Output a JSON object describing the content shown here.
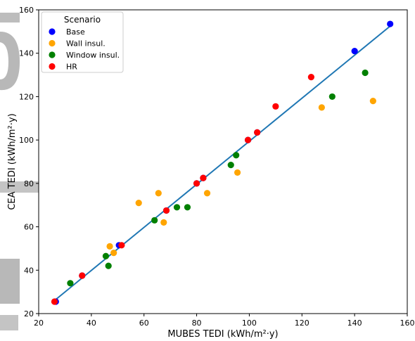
{
  "chart_data": {
    "type": "scatter",
    "xlabel": "MUBES TEDI (kWh/m²·y)",
    "ylabel": "CEA TEDI (kWh/m²·y)",
    "xlim": [
      20,
      160
    ],
    "ylim": [
      20,
      160
    ],
    "xticks": [
      20,
      40,
      60,
      80,
      100,
      120,
      140,
      160
    ],
    "yticks": [
      20,
      40,
      60,
      80,
      100,
      120,
      140,
      160
    ],
    "grid": false,
    "legend": {
      "title": "Scenario",
      "placement": "top-left"
    },
    "fit_line": {
      "x": [
        26,
        154
      ],
      "y": [
        26,
        153
      ],
      "color": "#1f77b4"
    },
    "series": [
      {
        "name": "Base",
        "color": "#0000ff",
        "points": [
          [
            26.5,
            25.5
          ],
          [
            36.5,
            37.5
          ],
          [
            50.5,
            51.5
          ],
          [
            68.5,
            67.5
          ],
          [
            80.0,
            80.0
          ],
          [
            82.5,
            82.5
          ],
          [
            99.5,
            100.0
          ],
          [
            103.0,
            103.5
          ],
          [
            140.0,
            141.0
          ],
          [
            153.5,
            153.5
          ]
        ]
      },
      {
        "name": "Wall insul.",
        "color": "#ffa500",
        "points": [
          [
            47.0,
            51.0
          ],
          [
            48.5,
            48.0
          ],
          [
            58.0,
            71.0
          ],
          [
            65.5,
            75.5
          ],
          [
            67.5,
            62.0
          ],
          [
            84.0,
            75.5
          ],
          [
            95.5,
            85.0
          ],
          [
            127.5,
            115.0
          ],
          [
            147.0,
            118.0
          ]
        ]
      },
      {
        "name": "Window insul.",
        "color": "#008000",
        "points": [
          [
            32.0,
            34.0
          ],
          [
            45.5,
            46.5
          ],
          [
            46.5,
            42.0
          ],
          [
            64.0,
            63.0
          ],
          [
            72.5,
            69.0
          ],
          [
            76.5,
            69.0
          ],
          [
            93.0,
            88.5
          ],
          [
            95.0,
            93.0
          ],
          [
            131.5,
            120.0
          ],
          [
            144.0,
            131.0
          ]
        ]
      },
      {
        "name": "HR",
        "color": "#ff0000",
        "points": [
          [
            26.0,
            25.5
          ],
          [
            36.5,
            37.5
          ],
          [
            51.5,
            51.5
          ],
          [
            68.5,
            67.5
          ],
          [
            80.0,
            80.0
          ],
          [
            82.5,
            82.5
          ],
          [
            99.5,
            100.0
          ],
          [
            103.0,
            103.5
          ],
          [
            110.0,
            115.5
          ],
          [
            123.5,
            129.0
          ]
        ]
      }
    ]
  }
}
